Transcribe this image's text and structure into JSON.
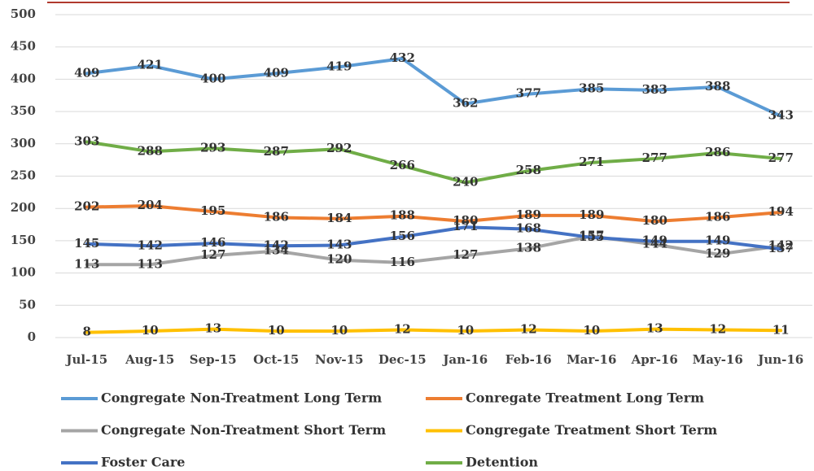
{
  "chart_data": {
    "type": "line",
    "categories": [
      "Jul-15",
      "Aug-15",
      "Sep-15",
      "Oct-15",
      "Nov-15",
      "Dec-15",
      "Jan-16",
      "Feb-16",
      "Mar-16",
      "Apr-16",
      "May-16",
      "Jun-16"
    ],
    "series": [
      {
        "name": "Congregate Non-Treatment Long Term",
        "color": "#5b9bd5",
        "values": [
          409,
          421,
          400,
          409,
          419,
          432,
          362,
          377,
          385,
          383,
          388,
          343
        ]
      },
      {
        "name": "Conregate Treatment Long Term",
        "color": "#ed7d31",
        "values": [
          202,
          204,
          195,
          186,
          184,
          188,
          180,
          189,
          189,
          180,
          186,
          194
        ]
      },
      {
        "name": "Congregate Non-Treatment Short Term",
        "color": "#a5a5a5",
        "values": [
          113,
          113,
          127,
          134,
          120,
          116,
          127,
          138,
          157,
          144,
          129,
          142
        ]
      },
      {
        "name": "Congregate Treatment Short Term",
        "color": "#ffc000",
        "values": [
          8,
          10,
          13,
          10,
          10,
          12,
          10,
          12,
          10,
          13,
          12,
          11
        ]
      },
      {
        "name": "Foster Care",
        "color": "#4472c4",
        "values": [
          145,
          142,
          146,
          142,
          143,
          156,
          171,
          168,
          155,
          149,
          149,
          137
        ]
      },
      {
        "name": "Detention",
        "color": "#70ad47",
        "values": [
          303,
          288,
          293,
          287,
          292,
          266,
          240,
          258,
          271,
          277,
          286,
          277
        ]
      }
    ],
    "ylim": [
      0,
      500
    ],
    "yticks": [
      0,
      50,
      100,
      150,
      200,
      250,
      300,
      350,
      400,
      450,
      500
    ],
    "grid": true
  }
}
